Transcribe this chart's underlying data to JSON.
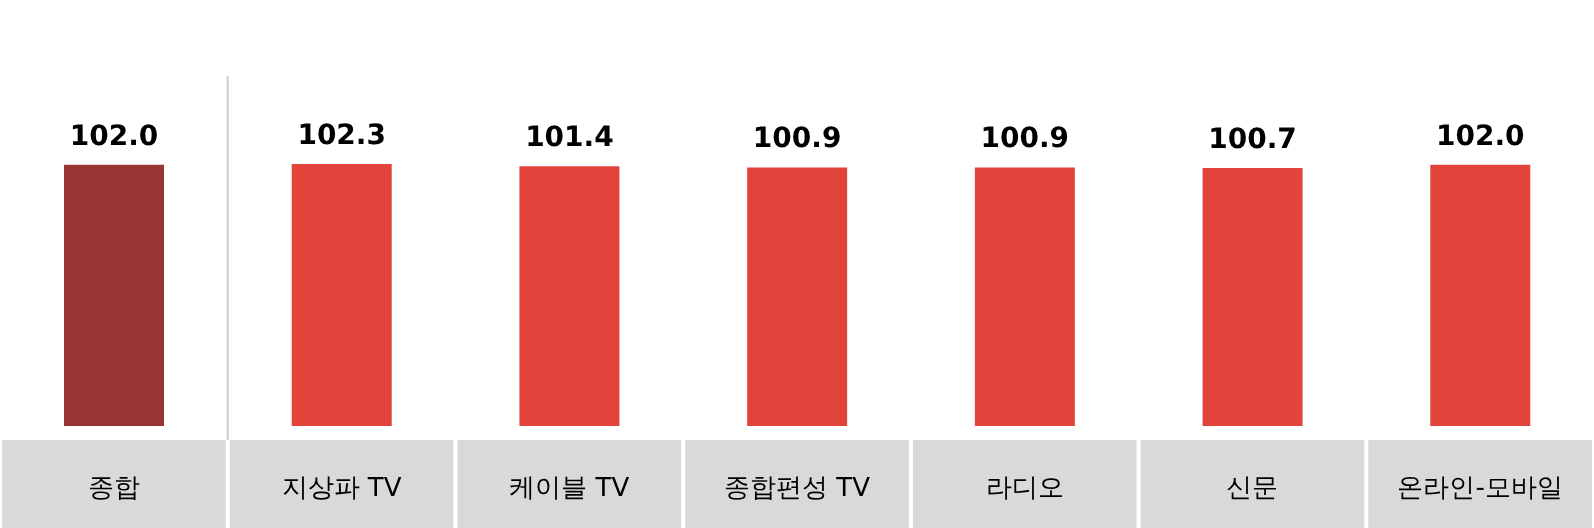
{
  "chart_data": {
    "type": "bar",
    "categories": [
      "종합",
      "지상파 TV",
      "케이블 TV",
      "종합편성 TV",
      "라디오",
      "신문",
      "온라인-모바일"
    ],
    "values": [
      102.0,
      102.3,
      101.4,
      100.9,
      100.9,
      100.7,
      102.0
    ],
    "colors": [
      "#9b3535",
      "#e2443b",
      "#e2443b",
      "#e2443b",
      "#e2443b",
      "#e2443b",
      "#e2443b"
    ],
    "value_labels": [
      "102.0",
      "102.3",
      "101.4",
      "100.9",
      "100.9",
      "100.7",
      "102.0"
    ]
  }
}
